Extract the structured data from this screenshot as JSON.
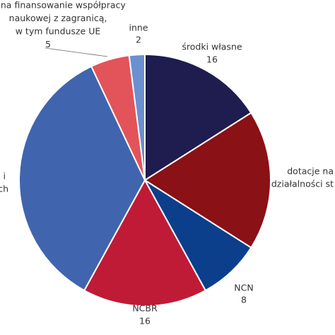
{
  "chart_data": {
    "type": "pie",
    "categories": [
      [
        "środki własne"
      ],
      [
        "dotacje na",
        "działalności st"
      ],
      [
        "NCN"
      ],
      [
        "NCBR"
      ],
      [
        "i",
        "ch"
      ],
      [
        "ki na finansowanie współpracy",
        "naukowej z zagranicą,",
        "w tym fundusze UE"
      ],
      [
        "inne"
      ]
    ],
    "values": [
      16,
      18,
      8,
      16,
      35,
      5,
      2
    ],
    "colors": [
      "#1f1c50",
      "#8a1115",
      "#0b3f8c",
      "#bf1b36",
      "#4065ae",
      "#e2545a",
      "#6b8fd1"
    ]
  }
}
